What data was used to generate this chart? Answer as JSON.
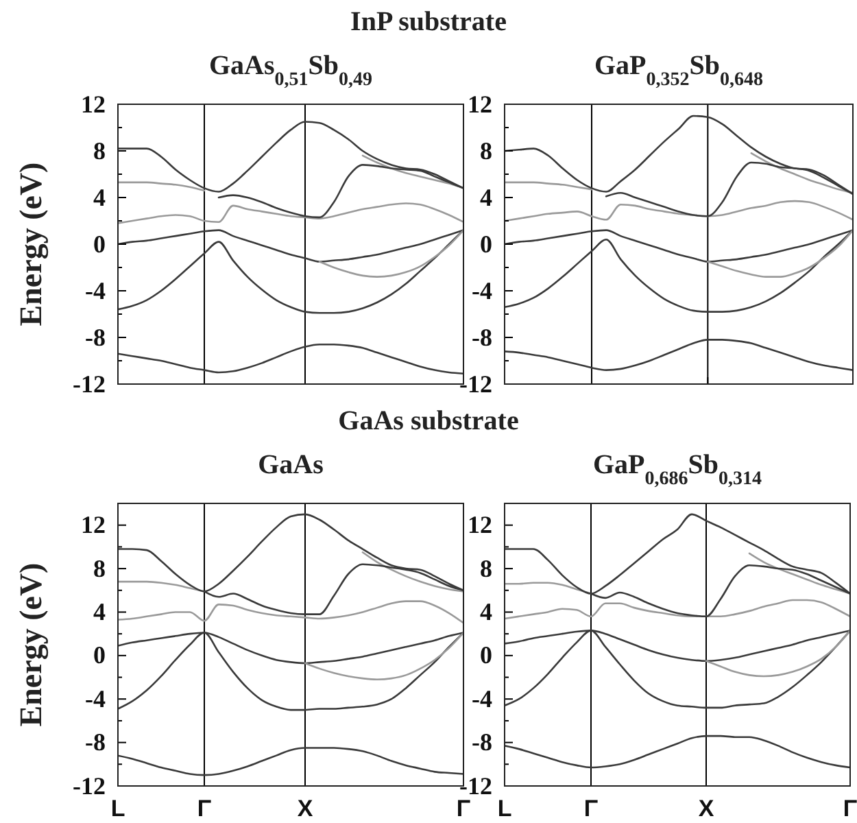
{
  "chart_data": [
    {
      "type": "line",
      "subtitle": "InP substrate",
      "title": "GaAs$_{0,51}$Sb$_{0,49}$",
      "ylabel": "Energy (eV)",
      "tick_labels": "y",
      "ylim": [
        -12,
        12
      ],
      "categories": [
        "L",
        null,
        null,
        null,
        null,
        null,
        "Γ",
        null,
        null,
        null,
        null,
        null,
        null,
        "X",
        null,
        null,
        null,
        null,
        null,
        null,
        null,
        null,
        null,
        null,
        "Γ"
      ],
      "yticks": [
        -12,
        {
          "value": -10,
          "label": null
        },
        -8,
        {
          "value": -6,
          "label": null
        },
        -4,
        {
          "value": -2,
          "label": null
        },
        0,
        {
          "value": 2,
          "label": null
        },
        4,
        {
          "value": 6,
          "label": null
        },
        8,
        {
          "value": 10,
          "label": null
        },
        12
      ],
      "ref_lines": [
        {
          "axis": "x",
          "value": "Γ",
          "color": "#000000"
        },
        {
          "axis": "x",
          "value": "X",
          "color": "#000000"
        }
      ],
      "series": [
        {
          "color": "#3a3a3a",
          "values": [
            -9.4,
            -9.6,
            -9.8,
            -10,
            -10.3,
            -10.6,
            -10.8,
            -11,
            -10.9,
            -10.6,
            -10.2,
            -9.7,
            -9.2,
            -8.8,
            -8.6,
            -8.6,
            -8.7,
            -8.9,
            -9.3,
            -9.7,
            -10.1,
            -10.5,
            -10.8,
            -11,
            -11.1
          ]
        },
        {
          "color": "#3a3a3a",
          "values": [
            -5.6,
            -5.3,
            -4.8,
            -4,
            -3,
            -1.9,
            -0.8,
            0.2,
            -1.4,
            -2.8,
            -3.9,
            -4.8,
            -5.4,
            -5.8,
            -5.9,
            -5.9,
            -5.8,
            -5.5,
            -5,
            -4.3,
            -3.4,
            -2.3,
            -1.2,
            0,
            1.2
          ]
        },
        {
          "color": "#3a3a3a",
          "values": [
            0,
            0.2,
            0.3,
            0.5,
            0.7,
            0.9,
            1.1,
            1.2,
            0.7,
            0.3,
            -0.1,
            -0.5,
            -0.9,
            -1.2,
            -1.5,
            -1.4,
            -1.3,
            -1.1,
            -0.9,
            -0.6,
            -0.3,
            0,
            0.4,
            0.8,
            1.2
          ]
        },
        {
          "color": "#9a9a9a",
          "values": [
            null,
            null,
            null,
            null,
            null,
            null,
            null,
            null,
            null,
            null,
            null,
            null,
            null,
            null,
            -1.5,
            -2,
            -2.4,
            -2.7,
            -2.8,
            -2.7,
            -2.4,
            -1.9,
            -1.1,
            -0.1,
            1.2
          ]
        },
        {
          "color": "#9a9a9a",
          "values": [
            1.8,
            2,
            2.2,
            2.4,
            2.5,
            2.4,
            2,
            1.9,
            3.3,
            3,
            2.8,
            2.6,
            2.4,
            2.3,
            2.2,
            2.4,
            2.7,
            3,
            3.2,
            3.4,
            3.5,
            3.4,
            3,
            2.5,
            1.9
          ]
        },
        {
          "color": "#9a9a9a",
          "values": [
            5.3,
            5.3,
            5.3,
            5.2,
            5.1,
            4.9,
            4.6,
            null,
            null,
            null,
            null,
            null,
            null,
            null,
            null,
            null,
            null,
            7.6,
            7,
            6.5,
            6.1,
            5.8,
            5.5,
            5.2,
            4.8
          ]
        },
        {
          "color": "#3a3a3a",
          "values": [
            8.2,
            8.2,
            8.2,
            7.5,
            6.4,
            5.5,
            4.8,
            4.5,
            5.2,
            6.3,
            7.5,
            8.7,
            9.8,
            10.5,
            10.4,
            9.8,
            9,
            8,
            7.3,
            6.8,
            6.5,
            6.4,
            6,
            5.4,
            4.8
          ]
        },
        {
          "color": "#3a3a3a",
          "values": [
            null,
            null,
            null,
            null,
            null,
            null,
            null,
            4,
            4.2,
            4,
            3.6,
            3.1,
            2.7,
            2.4,
            2.3,
            3.6,
            5.8,
            6.8,
            6.7,
            6.5,
            6.4,
            6.3,
            5.8,
            5.3,
            4.8
          ]
        }
      ]
    },
    {
      "type": "line",
      "title": "GaP$_{0,352}$Sb$_{0,648}$",
      "tick_labels": "y",
      "ylim": [
        -12,
        12
      ],
      "categories": [
        "L",
        null,
        null,
        null,
        null,
        null,
        "Γ",
        null,
        null,
        null,
        null,
        null,
        null,
        null,
        "X",
        null,
        null,
        null,
        null,
        null,
        null,
        null,
        null,
        null,
        "Γ"
      ],
      "yticks": [
        -12,
        {
          "value": -10,
          "label": null
        },
        -8,
        {
          "value": -6,
          "label": null
        },
        -4,
        {
          "value": -2,
          "label": null
        },
        0,
        {
          "value": 2,
          "label": null
        },
        4,
        {
          "value": 6,
          "label": null
        },
        8,
        {
          "value": 10,
          "label": null
        },
        12
      ],
      "ref_lines": [
        {
          "axis": "x",
          "value": "Γ",
          "color": "#000000"
        },
        {
          "axis": "x",
          "value": "X",
          "color": "#000000"
        }
      ],
      "series": [
        {
          "color": "#3a3a3a",
          "values": [
            -9.2,
            -9.3,
            -9.5,
            -9.7,
            -10,
            -10.3,
            -10.6,
            -10.8,
            -10.7,
            -10.4,
            -10,
            -9.5,
            -9,
            -8.5,
            -8.2,
            -8.2,
            -8.3,
            -8.5,
            -8.9,
            -9.3,
            -9.7,
            -10.1,
            -10.4,
            -10.6,
            -10.8
          ]
        },
        {
          "color": "#3a3a3a",
          "values": [
            -5.4,
            -5.1,
            -4.6,
            -3.8,
            -2.8,
            -1.7,
            -0.6,
            0.4,
            -1.3,
            -2.7,
            -3.8,
            -4.7,
            -5.3,
            -5.7,
            -5.8,
            -5.8,
            -5.7,
            -5.4,
            -4.9,
            -4.2,
            -3.3,
            -2.3,
            -1.1,
            0,
            1.2
          ]
        },
        {
          "color": "#3a3a3a",
          "values": [
            0,
            0.2,
            0.3,
            0.5,
            0.7,
            0.9,
            1.1,
            1.2,
            0.7,
            0.3,
            -0.1,
            -0.5,
            -0.9,
            -1.2,
            -1.5,
            -1.4,
            -1.3,
            -1.1,
            -0.9,
            -0.6,
            -0.3,
            0,
            0.4,
            0.8,
            1.2
          ]
        },
        {
          "color": "#9a9a9a",
          "values": [
            null,
            null,
            null,
            null,
            null,
            null,
            null,
            null,
            null,
            null,
            null,
            null,
            null,
            null,
            -1.5,
            -1.9,
            -2.3,
            -2.6,
            -2.8,
            -2.8,
            -2.5,
            -2,
            -1.2,
            -0.2,
            1.2
          ]
        },
        {
          "color": "#9a9a9a",
          "values": [
            2,
            2.2,
            2.4,
            2.6,
            2.7,
            2.8,
            2.4,
            2.1,
            3.4,
            3.3,
            3,
            2.8,
            2.6,
            2.5,
            2.4,
            2.5,
            2.8,
            3.1,
            3.3,
            3.6,
            3.7,
            3.6,
            3.2,
            2.7,
            2.1
          ]
        },
        {
          "color": "#9a9a9a",
          "values": [
            5.3,
            5.3,
            5.3,
            5.2,
            5.1,
            4.9,
            4.7,
            null,
            null,
            null,
            null,
            null,
            null,
            null,
            null,
            null,
            null,
            7.8,
            7.1,
            6.5,
            6,
            5.5,
            5.1,
            4.7,
            4.4
          ]
        },
        {
          "color": "#3a3a3a",
          "values": [
            8,
            8.1,
            8.2,
            7.6,
            6.5,
            5.5,
            4.8,
            4.5,
            5.4,
            6.4,
            7.6,
            8.8,
            9.9,
            11,
            10.9,
            10.3,
            9.3,
            8.3,
            7.5,
            6.9,
            6.5,
            6.4,
            5.9,
            5.1,
            4.3
          ]
        },
        {
          "color": "#3a3a3a",
          "values": [
            null,
            null,
            null,
            null,
            null,
            null,
            null,
            4.1,
            4.4,
            4,
            3.6,
            3.2,
            2.8,
            2.5,
            2.4,
            3.6,
            5.8,
            7,
            6.9,
            6.6,
            6.5,
            6.3,
            5.7,
            5,
            4.3
          ]
        }
      ]
    },
    {
      "type": "line",
      "subtitle": "GaAs substrate",
      "title": "GaAs",
      "ylabel": "Energy (eV)",
      "ylim": [
        -12,
        14
      ],
      "categories": [
        "L",
        null,
        null,
        null,
        null,
        null,
        "Γ",
        null,
        null,
        null,
        null,
        null,
        null,
        "X",
        null,
        null,
        null,
        null,
        null,
        null,
        null,
        null,
        null,
        null,
        "Γ"
      ],
      "yticks": [
        -12,
        {
          "value": -10,
          "label": null
        },
        -8,
        {
          "value": -6,
          "label": null
        },
        -4,
        {
          "value": -2,
          "label": null
        },
        0,
        {
          "value": 2,
          "label": null
        },
        4,
        {
          "value": 6,
          "label": null
        },
        8,
        {
          "value": 10,
          "label": null
        },
        12
      ],
      "ref_lines": [
        {
          "axis": "x",
          "value": "Γ",
          "color": "#000000"
        },
        {
          "axis": "x",
          "value": "X",
          "color": "#000000"
        }
      ],
      "series": [
        {
          "color": "#3a3a3a",
          "values": [
            -9.2,
            -9.5,
            -9.9,
            -10.3,
            -10.6,
            -10.9,
            -11,
            -10.9,
            -10.6,
            -10.2,
            -9.7,
            -9.2,
            -8.7,
            -8.5,
            -8.5,
            -8.5,
            -8.6,
            -8.8,
            -9.2,
            -9.7,
            -10.1,
            -10.4,
            -10.7,
            -10.8,
            -10.9
          ]
        },
        {
          "color": "#3a3a3a",
          "values": [
            -4.9,
            -4.2,
            -3.2,
            -1.9,
            -0.4,
            1,
            2.1,
            0.3,
            -1.5,
            -3,
            -4.1,
            -4.7,
            -5,
            -5,
            -4.9,
            -4.9,
            -4.8,
            -4.7,
            -4.5,
            -4,
            -3,
            -1.8,
            -0.6,
            0.8,
            2.1
          ]
        },
        {
          "color": "#3a3a3a",
          "values": [
            0.9,
            1.2,
            1.4,
            1.6,
            1.8,
            2,
            2.1,
            1.7,
            1.1,
            0.5,
            0,
            -0.4,
            -0.6,
            -0.7,
            -0.6,
            -0.5,
            -0.3,
            -0.1,
            0.2,
            0.5,
            0.8,
            1.1,
            1.4,
            1.8,
            2.1
          ]
        },
        {
          "color": "#9a9a9a",
          "values": [
            null,
            null,
            null,
            null,
            null,
            null,
            null,
            null,
            null,
            null,
            null,
            null,
            null,
            -0.7,
            -1.2,
            -1.6,
            -1.9,
            -2.1,
            -2.2,
            -2.1,
            -1.8,
            -1.2,
            -0.4,
            0.7,
            2.1
          ]
        },
        {
          "color": "#9a9a9a",
          "values": [
            3.3,
            3.4,
            3.6,
            3.8,
            4,
            4,
            3.2,
            4.7,
            4.6,
            4.2,
            3.9,
            3.7,
            3.6,
            3.5,
            3.4,
            3.5,
            3.7,
            4,
            4.4,
            4.8,
            5,
            5,
            4.6,
            3.9,
            3
          ]
        },
        {
          "color": "#9a9a9a",
          "values": [
            6.8,
            6.8,
            6.8,
            6.7,
            6.5,
            6.2,
            5.9,
            null,
            null,
            null,
            null,
            null,
            null,
            null,
            null,
            null,
            null,
            9.5,
            8.6,
            7.9,
            7.3,
            6.8,
            6.4,
            6.1,
            5.9
          ]
        },
        {
          "color": "#3a3a3a",
          "values": [
            9.8,
            9.8,
            9.7,
            8.7,
            7.5,
            6.5,
            5.9,
            6.6,
            7.8,
            9.1,
            10.5,
            11.8,
            12.8,
            13,
            12.5,
            11.6,
            10.6,
            9.8,
            9,
            8.3,
            8,
            7.9,
            7.3,
            6.6,
            6
          ]
        },
        {
          "color": "#3a3a3a",
          "values": [
            null,
            null,
            null,
            null,
            null,
            null,
            5.9,
            5.4,
            5.7,
            5.2,
            4.6,
            4.2,
            3.9,
            3.8,
            3.8,
            5.5,
            7.5,
            8.4,
            8.3,
            8.1,
            7.9,
            7.6,
            7,
            6.4,
            6
          ]
        }
      ]
    },
    {
      "type": "line",
      "title": "GaP$_{0,686}$Sb$_{0,314}$",
      "ylim": [
        -12,
        14
      ],
      "categories": [
        "L",
        null,
        null,
        null,
        null,
        null,
        "Γ",
        null,
        null,
        null,
        null,
        null,
        null,
        null,
        "X",
        null,
        null,
        null,
        null,
        null,
        null,
        null,
        null,
        null,
        "Γ"
      ],
      "yticks": [
        -12,
        {
          "value": -10,
          "label": null
        },
        -8,
        {
          "value": -6,
          "label": null
        },
        -4,
        {
          "value": -2,
          "label": null
        },
        0,
        {
          "value": 2,
          "label": null
        },
        4,
        {
          "value": 6,
          "label": null
        },
        8,
        {
          "value": 10,
          "label": null
        },
        12
      ],
      "ref_lines": [
        {
          "axis": "x",
          "value": "Γ",
          "color": "#000000"
        },
        {
          "axis": "x",
          "value": "X",
          "color": "#000000"
        }
      ],
      "series": [
        {
          "color": "#3a3a3a",
          "values": [
            -8.3,
            -8.6,
            -9,
            -9.4,
            -9.8,
            -10.1,
            -10.3,
            -10.2,
            -10,
            -9.6,
            -9.1,
            -8.6,
            -8.1,
            -7.6,
            -7.4,
            -7.4,
            -7.5,
            -7.5,
            -7.8,
            -8.3,
            -8.9,
            -9.4,
            -9.8,
            -10.1,
            -10.3
          ]
        },
        {
          "color": "#3a3a3a",
          "values": [
            -4.6,
            -4,
            -3,
            -1.7,
            -0.2,
            1.2,
            2.3,
            0.8,
            -0.8,
            -2.3,
            -3.5,
            -4.2,
            -4.6,
            -4.7,
            -4.8,
            -4.8,
            -4.6,
            -4.5,
            -4.4,
            -3.8,
            -2.9,
            -1.8,
            -0.6,
            0.8,
            2.3
          ]
        },
        {
          "color": "#3a3a3a",
          "values": [
            1.1,
            1.3,
            1.6,
            1.8,
            2,
            2.2,
            2.3,
            2,
            1.5,
            1,
            0.5,
            0.1,
            -0.2,
            -0.4,
            -0.5,
            -0.4,
            -0.2,
            0.1,
            0.4,
            0.7,
            1,
            1.4,
            1.7,
            2,
            2.3
          ]
        },
        {
          "color": "#9a9a9a",
          "values": [
            null,
            null,
            null,
            null,
            null,
            null,
            null,
            null,
            null,
            null,
            null,
            null,
            null,
            null,
            -0.5,
            -1,
            -1.5,
            -1.8,
            -1.9,
            -1.8,
            -1.5,
            -1,
            -0.3,
            0.8,
            2.3
          ]
        },
        {
          "color": "#9a9a9a",
          "values": [
            3.4,
            3.6,
            3.8,
            4,
            4.3,
            4.2,
            3.6,
            4.8,
            4.8,
            4.4,
            4.1,
            3.9,
            3.7,
            3.6,
            3.6,
            3.6,
            3.8,
            4.1,
            4.5,
            4.8,
            5.1,
            5.1,
            4.9,
            4.3,
            3.6
          ]
        },
        {
          "color": "#9a9a9a",
          "values": [
            6.6,
            6.6,
            6.7,
            6.7,
            6.5,
            6.1,
            5.7,
            null,
            null,
            null,
            null,
            null,
            null,
            null,
            null,
            null,
            null,
            9.4,
            8.6,
            8,
            7.5,
            7,
            6.5,
            6.1,
            5.7
          ]
        },
        {
          "color": "#3a3a3a",
          "values": [
            9.8,
            9.8,
            9.8,
            8.8,
            7.4,
            6.3,
            5.7,
            6.4,
            7.4,
            8.5,
            9.6,
            10.7,
            11.6,
            13,
            12.4,
            11.8,
            11.1,
            10.4,
            9.7,
            8.9,
            8.2,
            7.9,
            7.6,
            6.7,
            5.7
          ]
        },
        {
          "color": "#3a3a3a",
          "values": [
            null,
            null,
            null,
            null,
            null,
            null,
            5.7,
            5.3,
            5.8,
            5.4,
            4.8,
            4.3,
            3.9,
            3.7,
            3.6,
            5.2,
            7.3,
            8.3,
            8.2,
            8,
            7.9,
            7.5,
            6.9,
            6.3,
            5.7
          ]
        }
      ]
    }
  ]
}
